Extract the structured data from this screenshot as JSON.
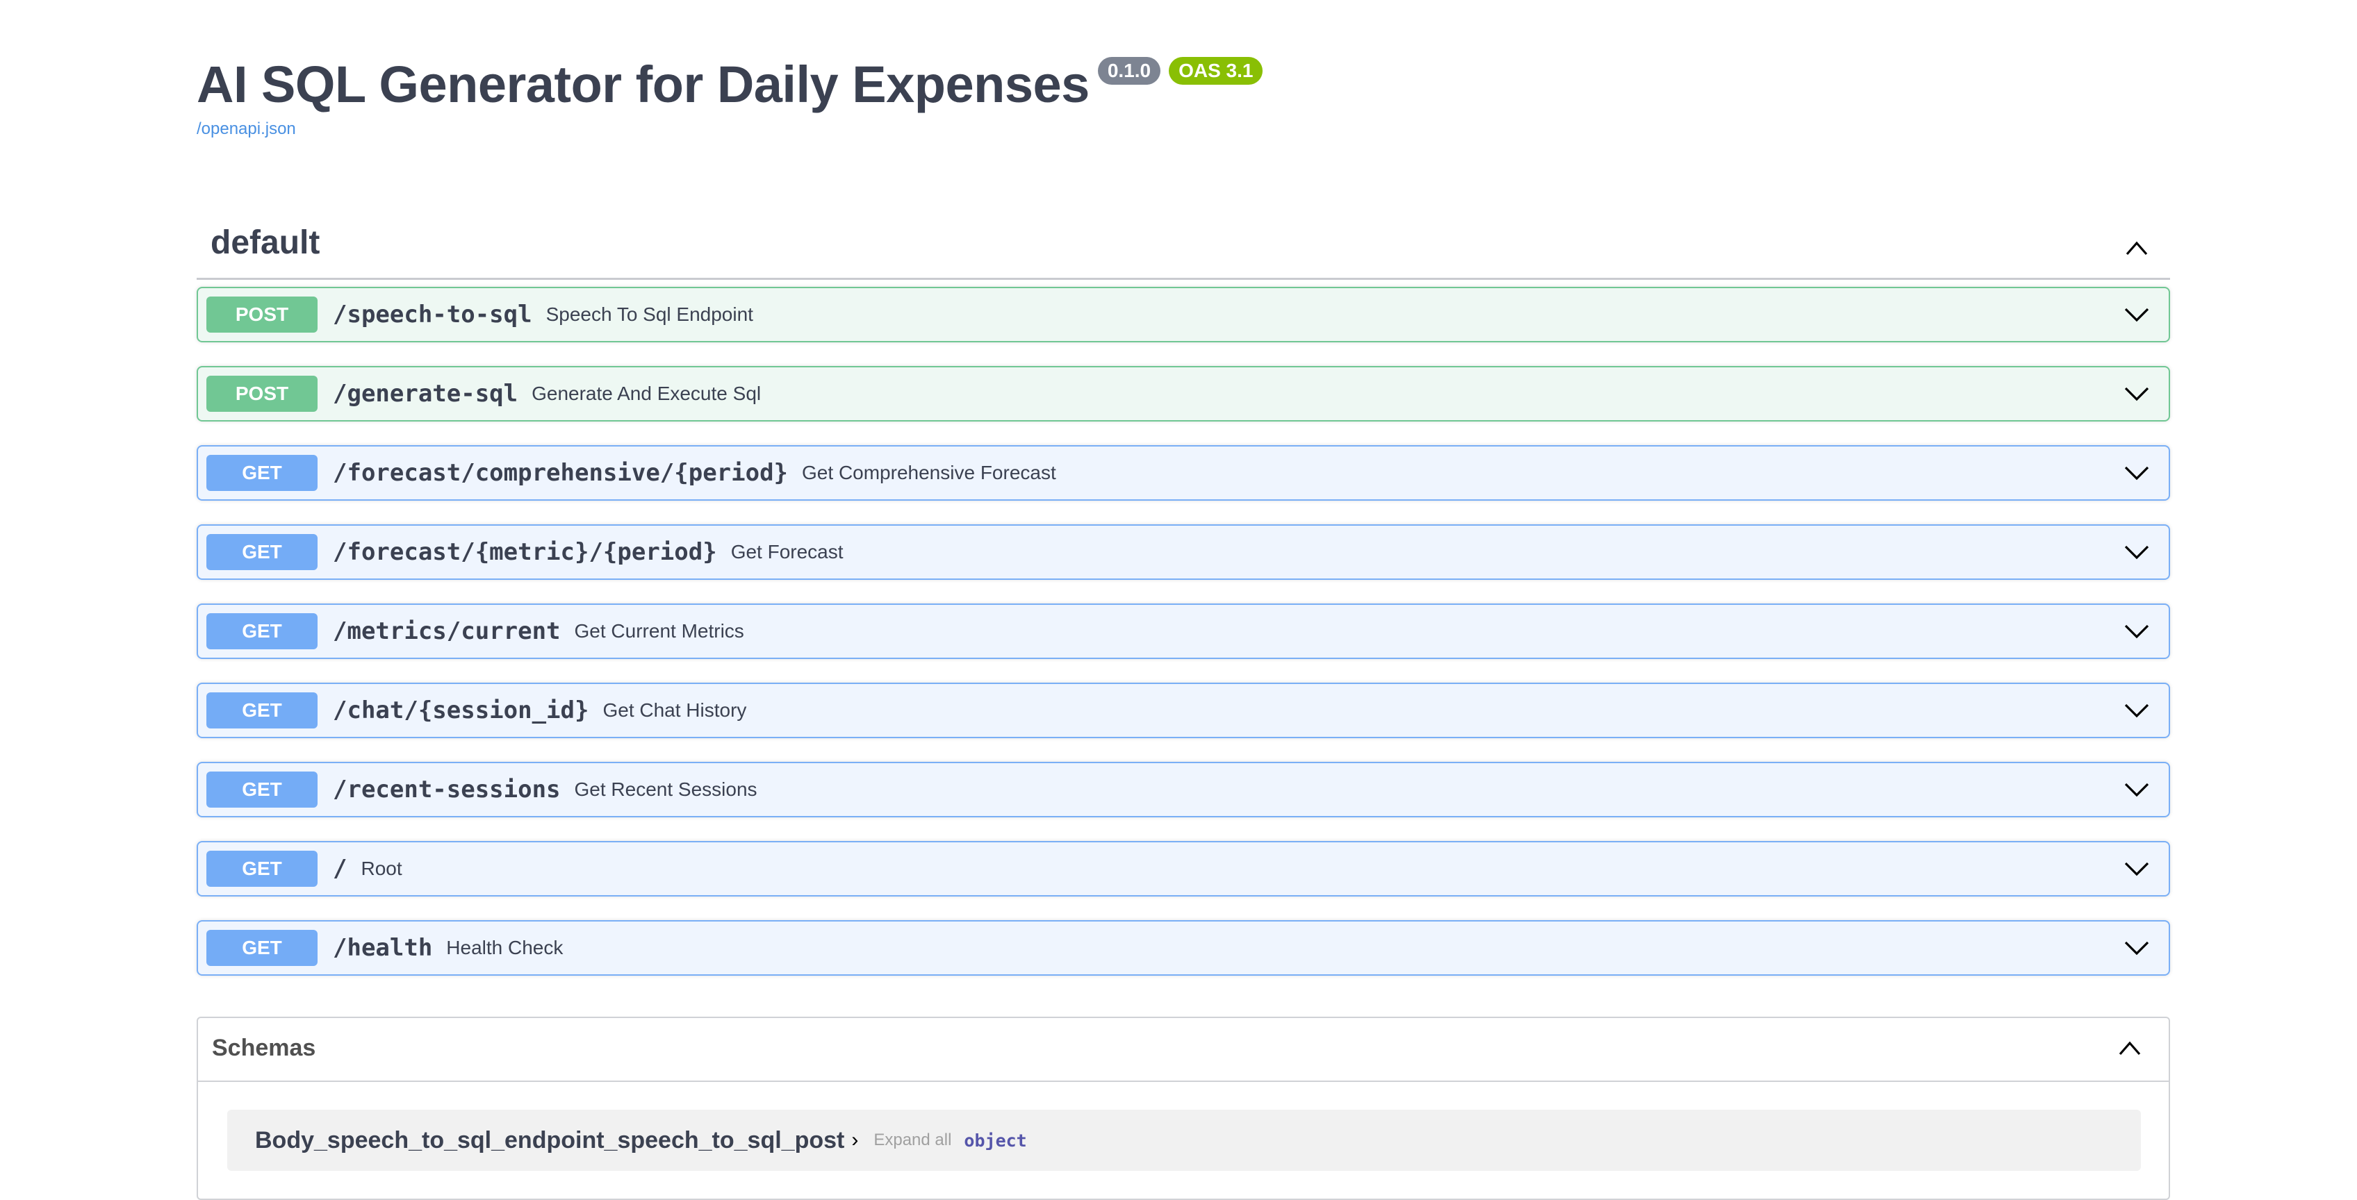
{
  "header": {
    "title": "AI SQL Generator for Daily Expenses",
    "version_badge": "0.1.0",
    "oas_badge": "OAS 3.1",
    "spec_link": "/openapi.json"
  },
  "colors": {
    "post": "#49cc90",
    "get": "#61affe",
    "oas_badge": "#89bf04",
    "version_badge": "#7d8492"
  },
  "tag": {
    "name": "default",
    "icon": "chevron-up-icon"
  },
  "operations": [
    {
      "method": "POST",
      "path": "/speech-to-sql",
      "summary": "Speech To Sql Endpoint"
    },
    {
      "method": "POST",
      "path": "/generate-sql",
      "summary": "Generate And Execute Sql"
    },
    {
      "method": "GET",
      "path": "/forecast/comprehensive/{period}",
      "summary": "Get Comprehensive Forecast"
    },
    {
      "method": "GET",
      "path": "/forecast/{metric}/{period}",
      "summary": "Get Forecast"
    },
    {
      "method": "GET",
      "path": "/metrics/current",
      "summary": "Get Current Metrics"
    },
    {
      "method": "GET",
      "path": "/chat/{session_id}",
      "summary": "Get Chat History"
    },
    {
      "method": "GET",
      "path": "/recent-sessions",
      "summary": "Get Recent Sessions"
    },
    {
      "method": "GET",
      "path": "/",
      "summary": "Root"
    },
    {
      "method": "GET",
      "path": "/health",
      "summary": "Health Check"
    }
  ],
  "schemas": {
    "title": "Schemas",
    "items": [
      {
        "name": "Body_speech_to_sql_endpoint_speech_to_sql_post",
        "expand_label": "Expand all",
        "type": "object"
      }
    ]
  }
}
